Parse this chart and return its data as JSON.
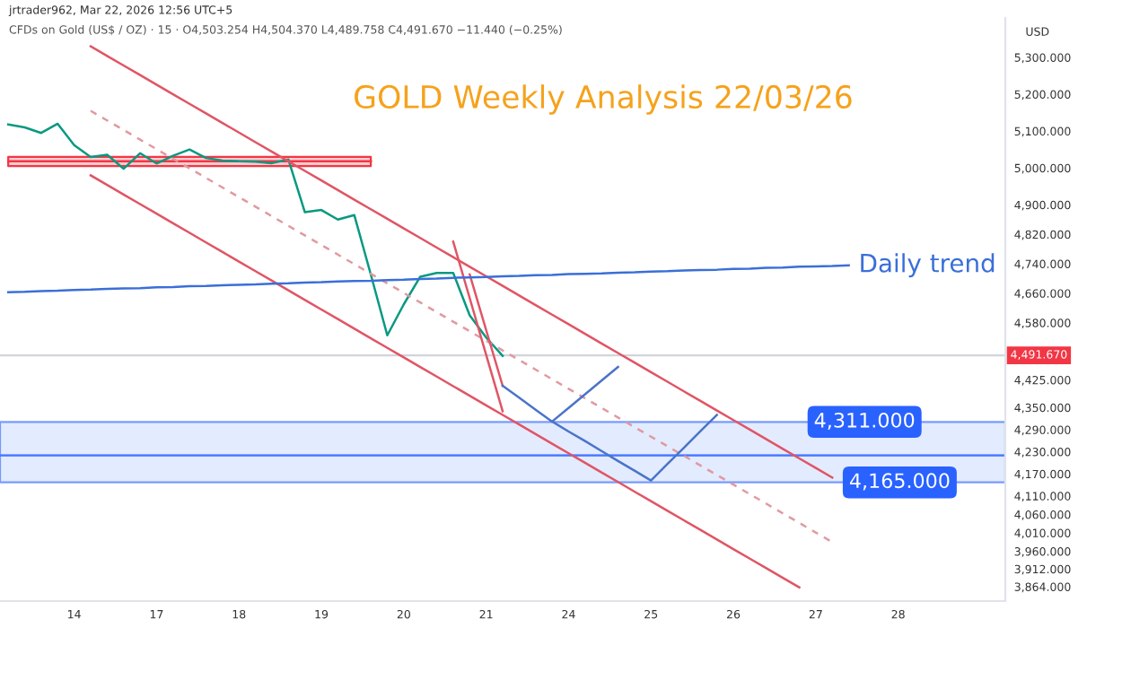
{
  "chart_data": {
    "type": "line",
    "title": "GOLD Weekly Analysis 22/03/26",
    "ylabel": "USD",
    "annotations": [
      "jrtrader962, Mar 22, 2026 12:56 UTC+5",
      "CFDs on Gold (US$ / OZ) · 15 · O4,503.254 H4,504.370 L4,489.758 C4,491.670 −11.440 (−0.25%)"
    ],
    "categories": [
      null,
      null,
      null,
      null,
      "14",
      null,
      null,
      null,
      null,
      "17",
      null,
      null,
      null,
      null,
      "18",
      null,
      null,
      null,
      null,
      "19",
      null,
      null,
      null,
      null,
      "20",
      null,
      null,
      null,
      null,
      "21",
      null,
      null,
      null,
      null,
      "24",
      null,
      null,
      null,
      null,
      "25",
      null,
      null,
      null,
      null,
      "26",
      null,
      null,
      null,
      null,
      "27",
      null,
      null,
      null,
      null,
      "28",
      null,
      null,
      null,
      null,
      null,
      null
    ],
    "ylim": [
      3825,
      5407
    ],
    "yticks": [
      {
        "value": 5300,
        "label": "5,300.000"
      },
      {
        "value": 5200,
        "label": "5,200.000"
      },
      {
        "value": 5100,
        "label": "5,100.000"
      },
      {
        "value": 5000,
        "label": "5,000.000"
      },
      {
        "value": 4900,
        "label": "4,900.000"
      },
      {
        "value": 4820,
        "label": "4,820.000"
      },
      {
        "value": 4740,
        "label": "4,740.000"
      },
      {
        "value": 4660,
        "label": "4,660.000"
      },
      {
        "value": 4580,
        "label": "4,580.000"
      },
      {
        "value": 4425,
        "label": "4,425.000"
      },
      {
        "value": 4350,
        "label": "4,350.000"
      },
      {
        "value": 4290,
        "label": "4,290.000"
      },
      {
        "value": 4230,
        "label": "4,230.000"
      },
      {
        "value": 4170,
        "label": "4,170.000"
      },
      {
        "value": 4110,
        "label": "4,110.000"
      },
      {
        "value": 4060,
        "label": "4,060.000"
      },
      {
        "value": 4010,
        "label": "4,010.000"
      },
      {
        "value": 3960,
        "label": "3,960.000"
      },
      {
        "value": 3912,
        "label": "3,912.000"
      },
      {
        "value": 3864,
        "label": "3,864.000"
      }
    ],
    "bands": [
      {
        "axis": "y",
        "from": 4220,
        "to": 4311,
        "label": "4,311.000",
        "color": "#2962ff"
      },
      {
        "axis": "y",
        "from": 4147,
        "to": 4220,
        "label": "4,165.000",
        "color": "#2962ff"
      }
    ],
    "ref_lines": [
      {
        "axis": "y",
        "value": 4491.67,
        "label": "4,491.670",
        "color": "#d1d4dc"
      }
    ],
    "series": [
      {
        "color": "#f23645",
        "values": [
          5018,
          5018,
          5018,
          5018,
          5018,
          5018,
          5018,
          5018,
          5018,
          5018,
          5018,
          5018,
          5018,
          5018,
          5018,
          5018,
          5018,
          5018,
          5018,
          5018,
          5018,
          5018,
          5018,
          null,
          null,
          null,
          null,
          null,
          null,
          null,
          null,
          null,
          null,
          null,
          null,
          null,
          null,
          null,
          null,
          null,
          null,
          null,
          null,
          null,
          null,
          null,
          null,
          null,
          null,
          null,
          null,
          null,
          null,
          null,
          null,
          null,
          null,
          null,
          null,
          null,
          null
        ],
        "lower": [
          5005,
          5005,
          5005,
          5005,
          5005,
          5005,
          5005,
          5005,
          5005,
          5005,
          5005,
          5005,
          5005,
          5005,
          5005,
          5005,
          5005,
          5005,
          5005,
          5005,
          5005,
          5005,
          5005,
          null,
          null,
          null,
          null,
          null,
          null,
          null,
          null,
          null,
          null,
          null,
          null,
          null,
          null,
          null,
          null,
          null,
          null,
          null,
          null,
          null,
          null,
          null,
          null,
          null,
          null,
          null,
          null,
          null,
          null,
          null,
          null,
          null,
          null,
          null,
          null,
          null,
          null
        ],
        "upper": [
          5030,
          5030,
          5030,
          5030,
          5030,
          5030,
          5030,
          5030,
          5030,
          5030,
          5030,
          5030,
          5030,
          5030,
          5030,
          5030,
          5030,
          5030,
          5030,
          5030,
          5030,
          5030,
          5030,
          null,
          null,
          null,
          null,
          null,
          null,
          null,
          null,
          null,
          null,
          null,
          null,
          null,
          null,
          null,
          null,
          null,
          null,
          null,
          null,
          null,
          null,
          null,
          null,
          null,
          null,
          null,
          null,
          null,
          null,
          null,
          null,
          null,
          null,
          null,
          null,
          null,
          null
        ]
      },
      {
        "color": "#089981",
        "values": [
          5118,
          5110,
          5095,
          5120,
          5062,
          5030,
          5036,
          4998,
          5040,
          5012,
          5033,
          5050,
          5027,
          5020,
          5018,
          5017,
          5013,
          5023,
          4880,
          4886,
          4860,
          4872,
          4711,
          4546,
          4630,
          4705,
          4715,
          4715,
          4600,
          4540,
          4490,
          null,
          null,
          null,
          null,
          null,
          null,
          null,
          null,
          null,
          null,
          null,
          null,
          null,
          null,
          null,
          null,
          null,
          null,
          null,
          null,
          null,
          null,
          null,
          null,
          null,
          null,
          null,
          null,
          null,
          null
        ]
      },
      {
        "color": "#e05565",
        "values": [
          null,
          null,
          null,
          null,
          null,
          5330,
          5304,
          5278,
          5252,
          5226,
          5200,
          5174,
          5148,
          5122,
          5096,
          5070,
          5044,
          5018,
          4992,
          4966,
          4940,
          4914,
          4888,
          4862,
          4836,
          4810,
          4784,
          4758,
          4732,
          4706,
          4680,
          4654,
          4628,
          4602,
          4576,
          4550,
          4524,
          4498,
          4472,
          4446,
          4420,
          4394,
          4368,
          4342,
          4316,
          4290,
          4264,
          4238,
          4212,
          4186,
          4160,
          null,
          null,
          null,
          null,
          null,
          null,
          null,
          null,
          null,
          null
        ]
      },
      {
        "color": "#e05565",
        "values": [
          null,
          null,
          null,
          null,
          null,
          4980,
          4954,
          4928,
          4902,
          4876,
          4850,
          4824,
          4798,
          4772,
          4746,
          4720,
          4694,
          4668,
          4642,
          4616,
          4590,
          4564,
          4538,
          4512,
          4486,
          4460,
          4434,
          4408,
          4382,
          4356,
          4330,
          4304,
          4278,
          4252,
          4226,
          4200,
          4174,
          4148,
          4122,
          4096,
          4070,
          4044,
          4018,
          3992,
          3966,
          3940,
          3914,
          3888,
          3862,
          null,
          null,
          null,
          null,
          null,
          null,
          null,
          null,
          null,
          null,
          null,
          null
        ]
      },
      {
        "color": "#e09aa0",
        "line_style": "dashed",
        "values": [
          null,
          null,
          null,
          null,
          null,
          5155,
          5129,
          5103,
          5077,
          5051,
          5025,
          4999,
          4973,
          4947,
          4921,
          4895,
          4869,
          4843,
          4817,
          4791,
          4765,
          4739,
          4713,
          4687,
          4661,
          4635,
          4609,
          4583,
          4557,
          4531,
          4505,
          4479,
          4453,
          4427,
          4401,
          4375,
          4349,
          4323,
          4297,
          4271,
          4245,
          4219,
          4193,
          4167,
          4141,
          4115,
          4089,
          4063,
          4037,
          4011,
          3985,
          null,
          null,
          null,
          null,
          null,
          null,
          null,
          null,
          null,
          null
        ]
      },
      {
        "color": "#e05565",
        "values": [
          null,
          null,
          null,
          null,
          null,
          null,
          null,
          null,
          null,
          null,
          null,
          null,
          null,
          null,
          null,
          null,
          null,
          null,
          null,
          null,
          null,
          null,
          null,
          null,
          null,
          null,
          null,
          4800,
          4647,
          4493,
          4340,
          null,
          null,
          null,
          null,
          null,
          null,
          null,
          null,
          null,
          null,
          null,
          null,
          null,
          null,
          null,
          null,
          null,
          null,
          null,
          null,
          null,
          null,
          null,
          null,
          null,
          null,
          null,
          null,
          null,
          null
        ]
      },
      {
        "color": "#e05565",
        "values": [
          null,
          null,
          null,
          null,
          null,
          null,
          null,
          null,
          null,
          null,
          null,
          null,
          null,
          null,
          null,
          null,
          null,
          null,
          null,
          null,
          null,
          null,
          null,
          null,
          null,
          null,
          null,
          null,
          4711,
          4560,
          4409,
          null,
          null,
          null,
          null,
          null,
          null,
          null,
          null,
          null,
          null,
          null,
          null,
          null,
          null,
          null,
          null,
          null,
          null,
          null,
          null,
          null,
          null,
          null,
          null,
          null,
          null,
          null,
          null,
          null,
          null
        ]
      },
      {
        "name": "Daily trend",
        "color": "#3a6fd8",
        "values": [
          4663,
          4664,
          4666,
          4667,
          4669,
          4670,
          4672,
          4673,
          4674,
          4676,
          4677,
          4679,
          4680,
          4682,
          4683,
          4684,
          4686,
          4687,
          4689,
          4690,
          4692,
          4693,
          4694,
          4696,
          4697,
          4699,
          4700,
          4702,
          4703,
          4704,
          4706,
          4707,
          4709,
          4710,
          4712,
          4713,
          4714,
          4716,
          4717,
          4719,
          4720,
          4722,
          4723,
          4724,
          4726,
          4727,
          4729,
          4730,
          4732,
          4733,
          4734,
          4736,
          null,
          null,
          null,
          null,
          null,
          null,
          null,
          null,
          null
        ]
      },
      {
        "color": "#4a74c9",
        "values": [
          null,
          null,
          null,
          null,
          null,
          null,
          null,
          null,
          null,
          null,
          null,
          null,
          null,
          null,
          null,
          null,
          null,
          null,
          null,
          null,
          null,
          null,
          null,
          null,
          null,
          null,
          null,
          null,
          null,
          null,
          4409,
          4377,
          4344,
          4312,
          4349,
          4386,
          4423,
          4460,
          null,
          null,
          null,
          null,
          null,
          null,
          null,
          null,
          null,
          null,
          null,
          null,
          null,
          null,
          null,
          null,
          null,
          null,
          null,
          null,
          null,
          null,
          null
        ]
      },
      {
        "color": "#4a74c9",
        "values": [
          null,
          null,
          null,
          null,
          null,
          null,
          null,
          null,
          null,
          null,
          null,
          null,
          null,
          null,
          null,
          null,
          null,
          null,
          null,
          null,
          null,
          null,
          null,
          null,
          null,
          null,
          null,
          null,
          null,
          null,
          null,
          null,
          null,
          4312,
          4285,
          4259,
          4232,
          4205,
          4179,
          4152,
          4197,
          4241,
          4286,
          4330,
          null,
          null,
          null,
          null,
          null,
          null,
          null,
          null,
          null,
          null,
          null,
          null,
          null,
          null,
          null,
          null,
          null
        ]
      }
    ]
  }
}
